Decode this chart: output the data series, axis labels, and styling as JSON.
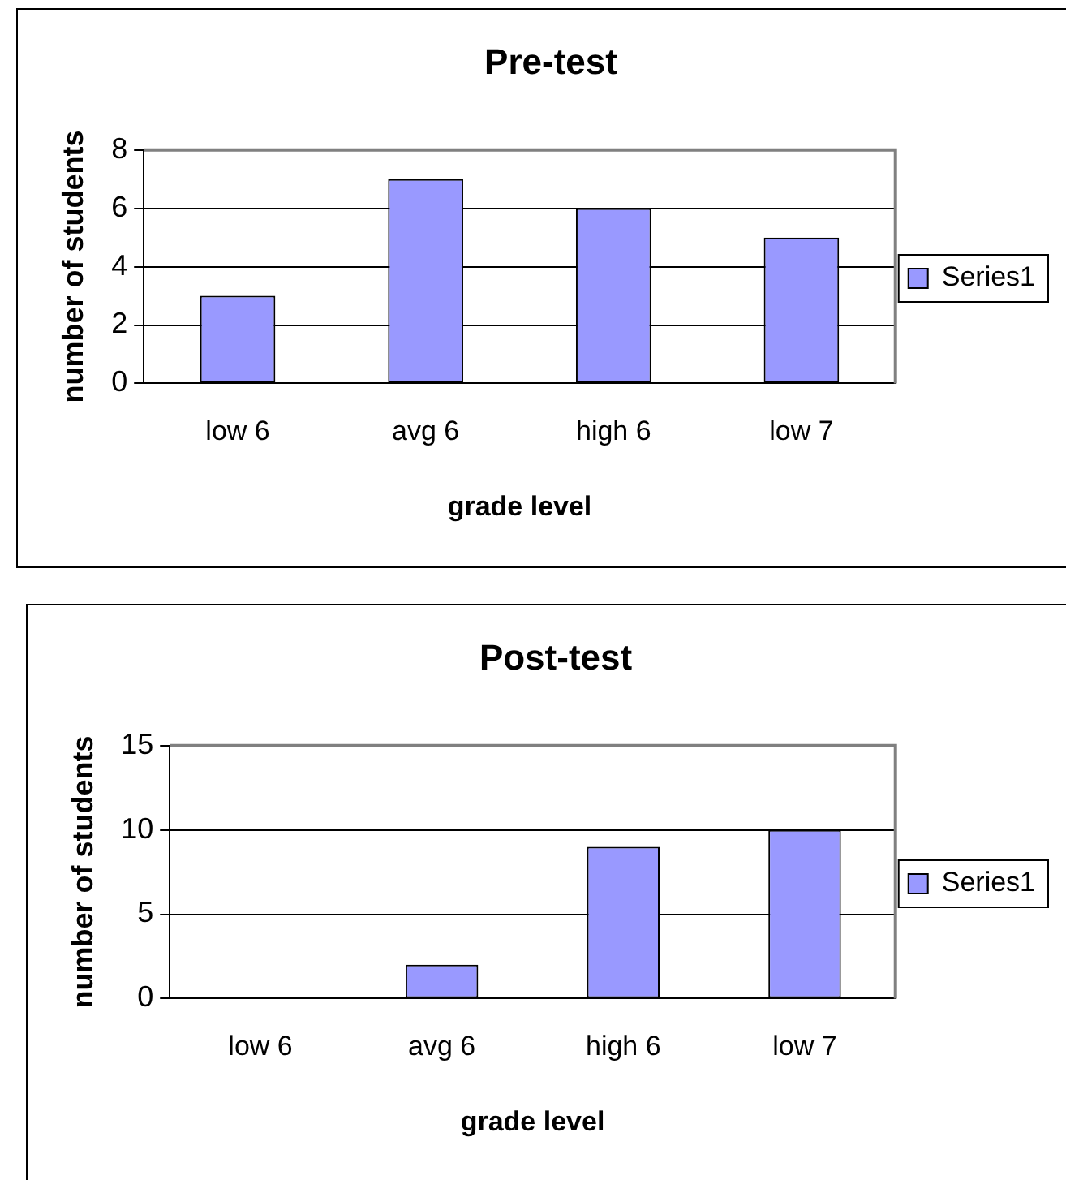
{
  "chart_data": [
    {
      "type": "bar",
      "title": "Pre-test",
      "xlabel": "grade level",
      "ylabel": "number of students",
      "categories": [
        "low 6",
        "avg 6",
        "high 6",
        "low 7"
      ],
      "series": [
        {
          "name": "Series1",
          "color": "#9999ff",
          "values": [
            3,
            7,
            6,
            5
          ]
        }
      ],
      "ylim": [
        0,
        8
      ],
      "yticks": [
        0,
        2,
        4,
        6,
        8
      ],
      "grid": "y",
      "legend": "right"
    },
    {
      "type": "bar",
      "title": "Post-test",
      "xlabel": "grade level",
      "ylabel": "number of students",
      "categories": [
        "low 6",
        "avg 6",
        "high 6",
        "low 7"
      ],
      "series": [
        {
          "name": "Series1",
          "color": "#9999ff",
          "values": [
            0,
            2,
            9,
            10
          ]
        }
      ],
      "ylim": [
        0,
        15
      ],
      "yticks": [
        0,
        5,
        10,
        15
      ],
      "grid": "y",
      "legend": "right"
    }
  ]
}
